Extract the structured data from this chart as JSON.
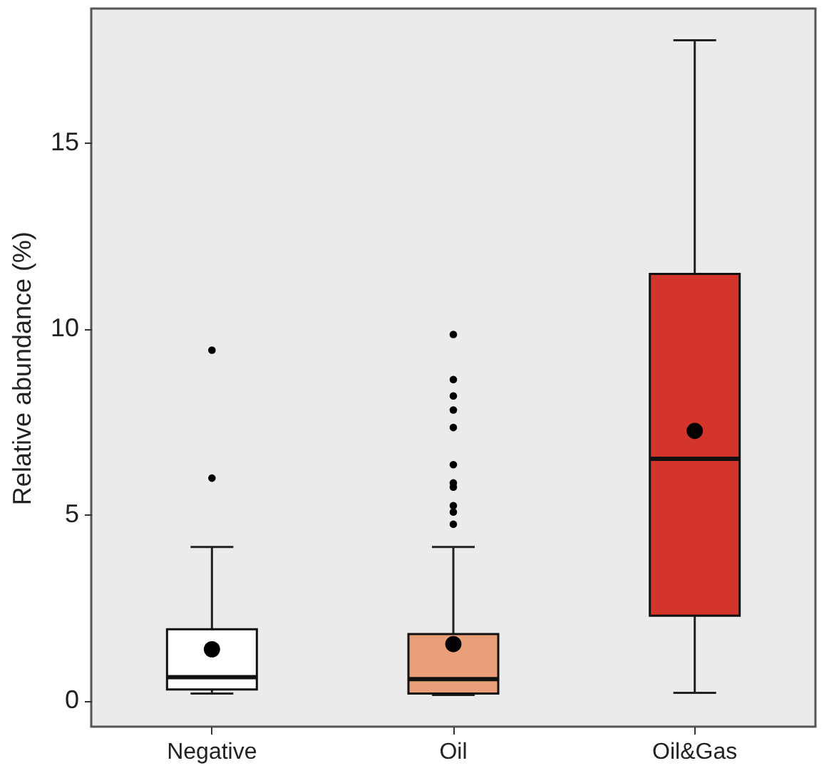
{
  "chart_data": {
    "type": "box",
    "ylabel": "Relative abundance (%)",
    "categories": [
      "Negative",
      "Oil",
      "Oil&Gas"
    ],
    "colors": [
      "#ffffff",
      "#e9a07a",
      "#d4352a"
    ],
    "boxes": [
      {
        "low": 0.19,
        "q1": 0.3,
        "median": 0.63,
        "q3": 1.92,
        "high": 4.13,
        "mean": 1.38,
        "outliers": [
          5.98,
          9.42
        ]
      },
      {
        "low": 0.15,
        "q1": 0.19,
        "median": 0.58,
        "q3": 1.79,
        "high": 4.13,
        "mean": 1.52,
        "outliers": [
          4.74,
          5.07,
          5.24,
          5.74,
          5.85,
          6.34,
          7.34,
          7.81,
          8.19,
          8.63,
          9.84
        ]
      },
      {
        "low": 0.21,
        "q1": 2.28,
        "median": 6.5,
        "q3": 11.47,
        "high": 17.75,
        "mean": 7.25
      }
    ],
    "ylim": [
      -0.7,
      18.6
    ],
    "yticks": [
      0,
      5,
      10,
      15
    ]
  }
}
